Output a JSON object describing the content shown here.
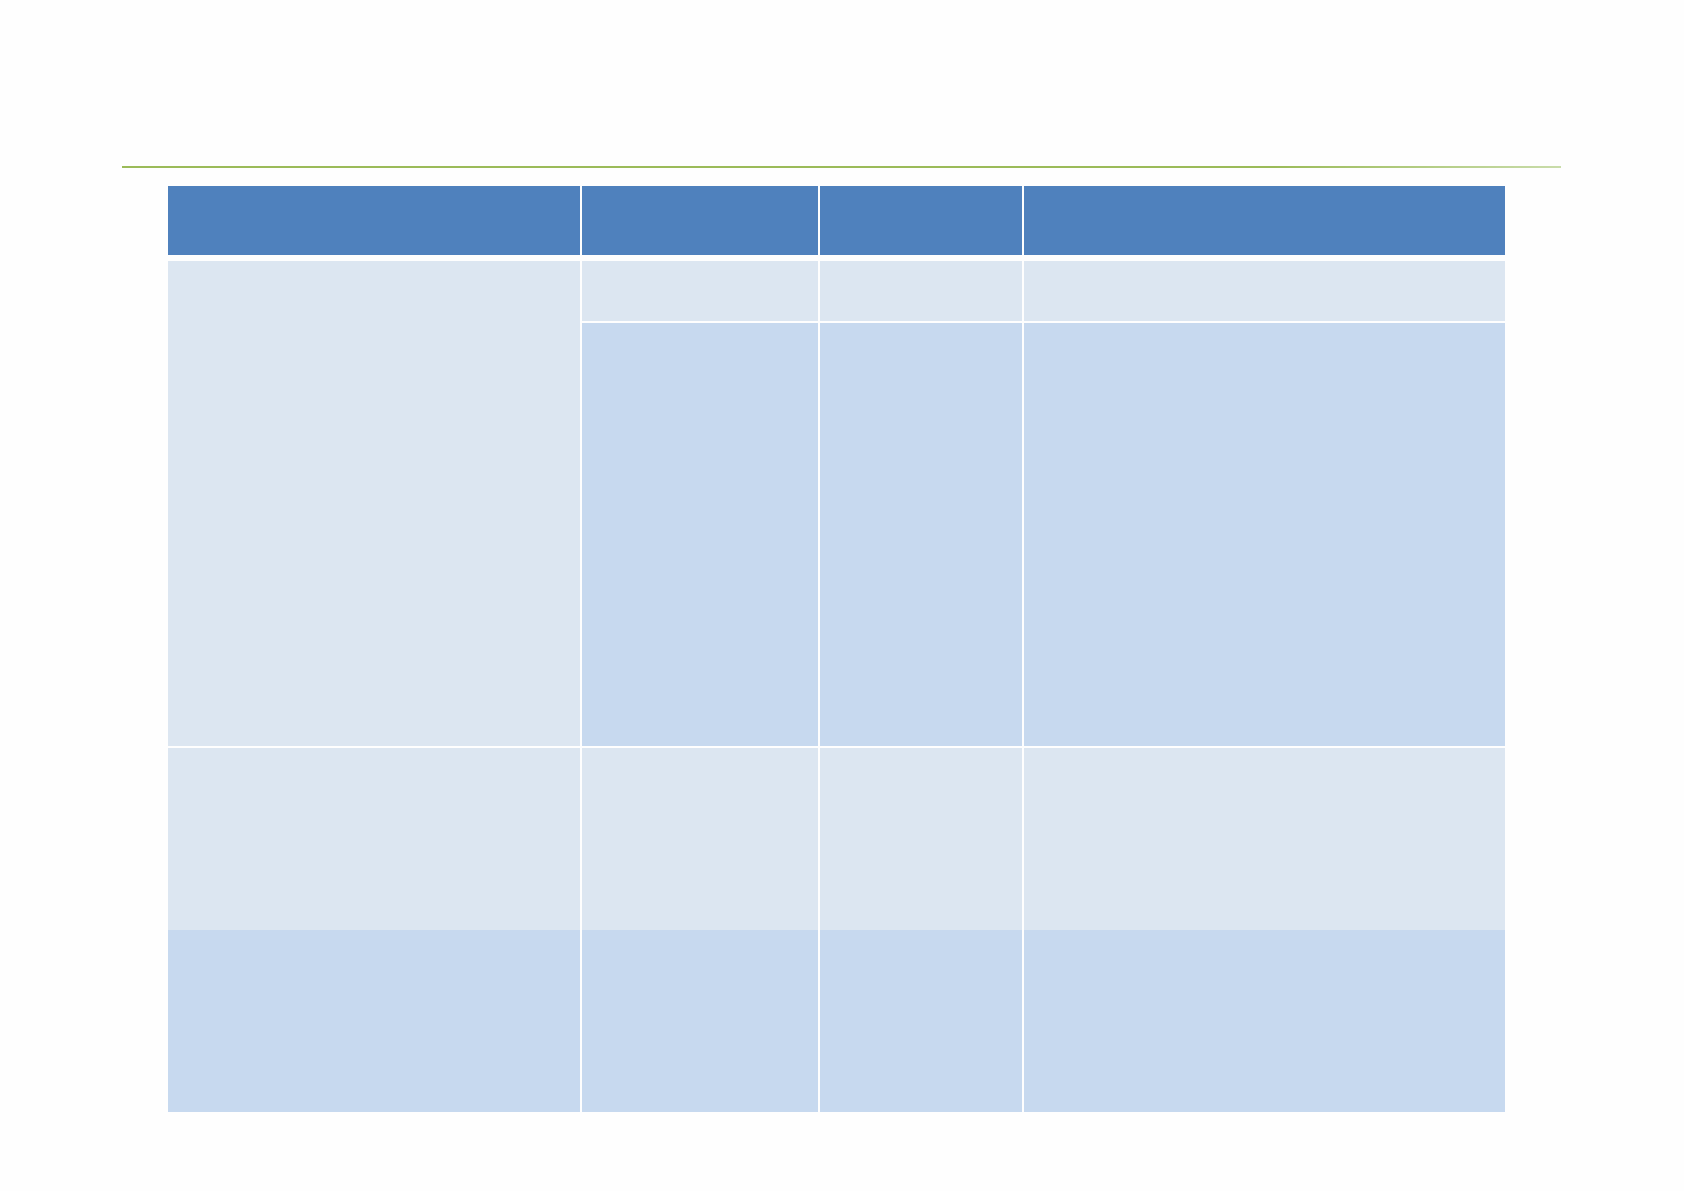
{
  "colors": {
    "header": "#4f81bd",
    "band_light": "#dce6f1",
    "band_medium": "#c7d9ef",
    "rule": "#9bbb59",
    "page": "#fefefe"
  },
  "table": {
    "columns": [
      "",
      "",
      "",
      ""
    ],
    "rows": [
      {
        "cells": [
          "",
          "",
          "",
          ""
        ]
      },
      {
        "cells": [
          "",
          "",
          ""
        ]
      },
      {
        "cells": [
          "",
          "",
          "",
          ""
        ]
      },
      {
        "cells": [
          "",
          "",
          "",
          ""
        ]
      }
    ]
  }
}
